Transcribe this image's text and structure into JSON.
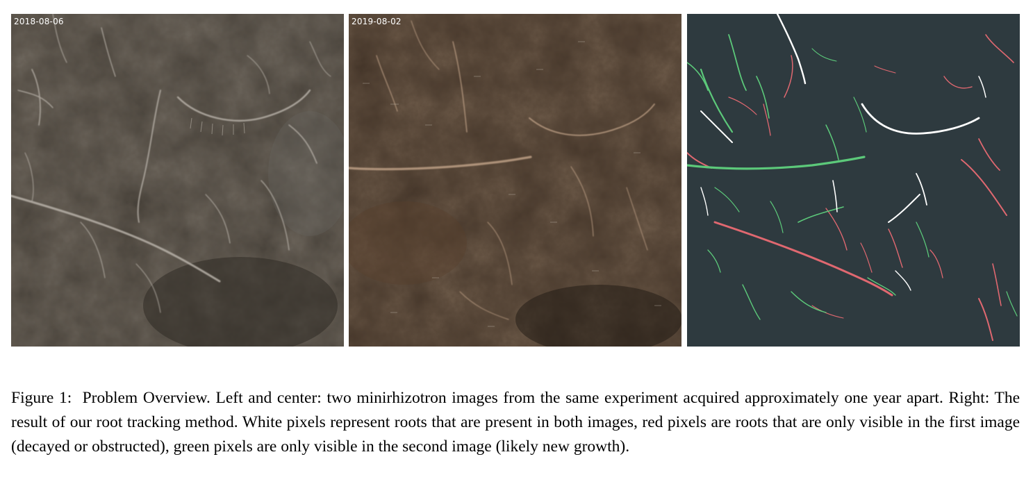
{
  "panels": {
    "left": {
      "date_label": "2018-08-06"
    },
    "center": {
      "date_label": "2019-08-02"
    },
    "right": {
      "date_label": ""
    }
  },
  "colors": {
    "tracking_background": "#2e3a3f",
    "root_both": "#ffffff",
    "root_first_only": "#e06870",
    "root_second_only": "#5cc97a"
  },
  "caption": {
    "label": "Figure 1:",
    "text": "Problem Overview. Left and center: two minirhizotron images from the same experiment acquired approximately one year apart. Right: The result of our root tracking method. White pixels represent roots that are present in both images, red pixels are roots that are only visible in the first image (decayed or obstructed), green pixels are only visible in the second image (likely new growth)."
  }
}
